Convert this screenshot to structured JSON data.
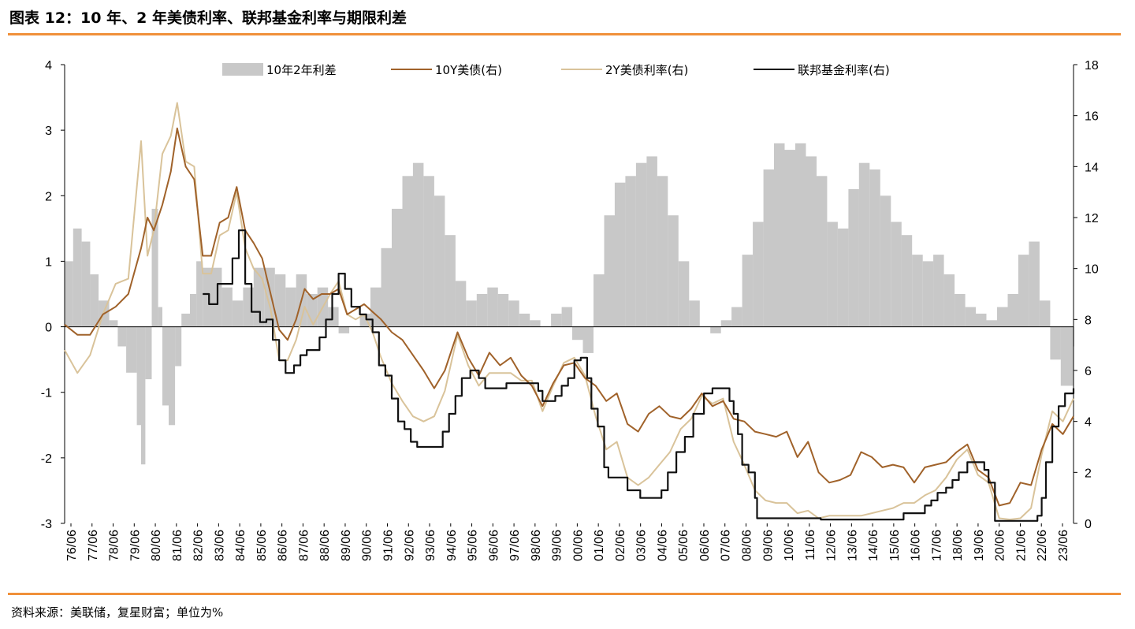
{
  "title": "图表 12：10 年、2 年美债利率、联邦基金利率与期限利差",
  "source": "资料来源：美联储，复星财富；单位为%",
  "colors": {
    "accent_rule": "#f0903a",
    "spread": "#c8c8c8",
    "y10": "#a0622a",
    "y2": "#d9c39a",
    "ffr": "#111111"
  },
  "chart_data": {
    "type": "line",
    "title": "",
    "x_tick_labels": [
      "76/06",
      "77/06",
      "78/06",
      "79/06",
      "80/06",
      "81/06",
      "82/06",
      "83/06",
      "84/06",
      "85/06",
      "86/06",
      "87/06",
      "88/06",
      "89/06",
      "90/06",
      "91/06",
      "92/06",
      "93/06",
      "94/06",
      "95/06",
      "96/06",
      "97/06",
      "98/06",
      "99/06",
      "00/06",
      "01/06",
      "02/06",
      "03/06",
      "04/06",
      "05/06",
      "06/06",
      "07/06",
      "08/06",
      "09/06",
      "10/06",
      "11/06",
      "12/06",
      "13/06",
      "14/06",
      "15/06",
      "16/06",
      "17/06",
      "18/06",
      "19/06",
      "20/06",
      "21/06",
      "22/06",
      "23/06"
    ],
    "x_range": [
      1976.4,
      2023.9
    ],
    "left_axis": {
      "ylim": [
        -3,
        4
      ],
      "ticks": [
        "4",
        "3",
        "2",
        "1",
        "0",
        "-1",
        "-2",
        "-3"
      ]
    },
    "right_axis": {
      "ylim": [
        0,
        18
      ],
      "ticks": [
        "18",
        "16",
        "14",
        "12",
        "10",
        "8",
        "6",
        "4",
        "2",
        "0"
      ]
    },
    "legend": [
      {
        "key": "spread",
        "label": "10年2年利差"
      },
      {
        "key": "y10",
        "label": "10Y美债(右)"
      },
      {
        "key": "y2",
        "label": "2Y美债利率(右)"
      },
      {
        "key": "ffr",
        "label": "联邦基金利率(右)"
      }
    ],
    "series": [
      {
        "name": "10年2年利差",
        "key": "spread",
        "axis": "left",
        "style": "area",
        "x": [
          1976.4,
          1976.8,
          1977.2,
          1977.6,
          1978.0,
          1978.5,
          1978.9,
          1979.3,
          1979.8,
          1980.0,
          1980.2,
          1980.5,
          1980.8,
          1981.0,
          1981.3,
          1981.6,
          1981.9,
          1982.3,
          1982.6,
          1982.9,
          1983.3,
          1983.8,
          1984.3,
          1984.8,
          1985.3,
          1985.8,
          1986.3,
          1986.8,
          1987.3,
          1987.8,
          1988.3,
          1988.8,
          1989.3,
          1989.8,
          1990.3,
          1990.8,
          1991.3,
          1991.8,
          1992.3,
          1992.8,
          1993.3,
          1993.8,
          1994.3,
          1994.8,
          1995.3,
          1995.8,
          1996.3,
          1996.8,
          1997.3,
          1997.8,
          1998.3,
          1998.8,
          1999.3,
          1999.8,
          2000.3,
          2000.8,
          2001.3,
          2001.8,
          2002.3,
          2002.8,
          2003.3,
          2003.8,
          2004.3,
          2004.8,
          2005.3,
          2005.8,
          2006.3,
          2006.8,
          2007.3,
          2007.8,
          2008.3,
          2008.8,
          2009.3,
          2009.8,
          2010.3,
          2010.8,
          2011.3,
          2011.8,
          2012.3,
          2012.8,
          2013.3,
          2013.8,
          2014.3,
          2014.8,
          2015.3,
          2015.8,
          2016.3,
          2016.8,
          2017.3,
          2017.8,
          2018.3,
          2018.8,
          2019.3,
          2019.8,
          2020.3,
          2020.8,
          2021.3,
          2021.8,
          2022.3,
          2022.8,
          2023.3,
          2023.9
        ],
        "values": [
          1.0,
          1.5,
          1.3,
          0.8,
          0.4,
          0.1,
          -0.3,
          -0.7,
          -1.5,
          -2.1,
          -0.8,
          1.8,
          0.3,
          -1.2,
          -1.5,
          -0.6,
          0.2,
          0.5,
          1.0,
          0.9,
          0.9,
          0.6,
          0.4,
          0.6,
          0.9,
          0.9,
          0.8,
          0.6,
          0.8,
          0.5,
          0.6,
          0.3,
          -0.1,
          0.0,
          0.2,
          0.6,
          1.2,
          1.8,
          2.3,
          2.5,
          2.3,
          2.0,
          1.4,
          0.7,
          0.4,
          0.5,
          0.6,
          0.5,
          0.4,
          0.2,
          0.1,
          0.0,
          0.2,
          0.3,
          -0.2,
          -0.4,
          0.8,
          1.7,
          2.2,
          2.3,
          2.5,
          2.6,
          2.3,
          1.7,
          1.0,
          0.4,
          0.0,
          -0.1,
          0.1,
          0.3,
          1.1,
          1.6,
          2.4,
          2.8,
          2.7,
          2.8,
          2.6,
          2.3,
          1.6,
          1.5,
          2.1,
          2.5,
          2.4,
          2.0,
          1.6,
          1.4,
          1.1,
          1.0,
          1.1,
          0.8,
          0.5,
          0.3,
          0.2,
          0.1,
          0.3,
          0.5,
          1.1,
          1.3,
          0.4,
          -0.5,
          -0.9,
          -0.3
        ]
      },
      {
        "name": "10Y美债(右)",
        "key": "y10",
        "axis": "right",
        "style": "line",
        "x": [
          1976.4,
          1977.0,
          1977.6,
          1978.2,
          1978.8,
          1979.4,
          1980.0,
          1980.3,
          1980.6,
          1981.0,
          1981.4,
          1981.7,
          1982.1,
          1982.5,
          1982.9,
          1983.3,
          1983.7,
          1984.1,
          1984.5,
          1984.9,
          1985.3,
          1985.7,
          1986.1,
          1986.5,
          1986.9,
          1987.3,
          1987.7,
          1988.1,
          1988.5,
          1988.9,
          1989.3,
          1989.7,
          1990.1,
          1990.5,
          1990.9,
          1991.3,
          1991.8,
          1992.3,
          1992.8,
          1993.3,
          1993.8,
          1994.3,
          1994.9,
          1995.4,
          1995.9,
          1996.4,
          1996.9,
          1997.4,
          1997.9,
          1998.4,
          1998.9,
          1999.4,
          1999.9,
          2000.4,
          2000.9,
          2001.4,
          2001.9,
          2002.4,
          2002.9,
          2003.4,
          2003.9,
          2004.4,
          2004.9,
          2005.4,
          2005.9,
          2006.4,
          2006.9,
          2007.4,
          2007.9,
          2008.4,
          2008.9,
          2009.4,
          2009.9,
          2010.4,
          2010.9,
          2011.4,
          2011.9,
          2012.4,
          2012.9,
          2013.4,
          2013.9,
          2014.4,
          2014.9,
          2015.4,
          2015.9,
          2016.4,
          2016.9,
          2017.4,
          2017.9,
          2018.4,
          2018.9,
          2019.4,
          2019.9,
          2020.4,
          2020.9,
          2021.4,
          2021.9,
          2022.4,
          2022.9,
          2023.4,
          2023.9
        ],
        "values": [
          7.8,
          7.4,
          7.4,
          8.2,
          8.5,
          9.0,
          10.8,
          12.0,
          11.5,
          12.5,
          13.8,
          15.5,
          14.0,
          13.5,
          10.5,
          10.5,
          11.8,
          12.0,
          13.2,
          11.5,
          11.0,
          10.4,
          9.0,
          7.6,
          7.2,
          8.0,
          9.2,
          8.8,
          9.0,
          9.0,
          9.2,
          8.2,
          8.4,
          8.6,
          8.3,
          8.0,
          7.5,
          7.2,
          6.6,
          6.0,
          5.3,
          6.0,
          7.5,
          6.5,
          5.8,
          6.7,
          6.2,
          6.5,
          5.8,
          5.4,
          4.6,
          5.5,
          6.2,
          6.3,
          5.7,
          5.4,
          4.8,
          5.1,
          3.9,
          3.6,
          4.3,
          4.6,
          4.2,
          4.1,
          4.5,
          5.1,
          4.6,
          4.8,
          4.1,
          4.0,
          3.6,
          3.5,
          3.4,
          3.6,
          2.6,
          3.2,
          2.0,
          1.6,
          1.7,
          1.9,
          2.8,
          2.6,
          2.2,
          2.3,
          2.2,
          1.6,
          2.2,
          2.3,
          2.4,
          2.8,
          3.1,
          2.1,
          1.8,
          0.7,
          0.8,
          1.6,
          1.5,
          2.9,
          3.9,
          3.5,
          4.2
        ]
      },
      {
        "name": "2Y美债利率(右)",
        "key": "y2",
        "axis": "right",
        "style": "line",
        "x": [
          1976.4,
          1977.0,
          1977.6,
          1978.2,
          1978.8,
          1979.4,
          1980.0,
          1980.3,
          1980.6,
          1981.0,
          1981.4,
          1981.7,
          1982.1,
          1982.5,
          1982.9,
          1983.3,
          1983.7,
          1984.1,
          1984.5,
          1984.9,
          1985.3,
          1985.7,
          1986.1,
          1986.5,
          1986.9,
          1987.3,
          1987.7,
          1988.1,
          1988.5,
          1988.9,
          1989.3,
          1989.7,
          1990.1,
          1990.5,
          1990.9,
          1991.3,
          1991.8,
          1992.3,
          1992.8,
          1993.3,
          1993.8,
          1994.3,
          1994.9,
          1995.4,
          1995.9,
          1996.4,
          1996.9,
          1997.4,
          1997.9,
          1998.4,
          1998.9,
          1999.4,
          1999.9,
          2000.4,
          2000.9,
          2001.4,
          2001.9,
          2002.4,
          2002.9,
          2003.4,
          2003.9,
          2004.4,
          2004.9,
          2005.4,
          2005.9,
          2006.4,
          2006.9,
          2007.4,
          2007.9,
          2008.4,
          2008.9,
          2009.4,
          2009.9,
          2010.4,
          2010.9,
          2011.4,
          2011.9,
          2012.4,
          2012.9,
          2013.4,
          2013.9,
          2014.4,
          2014.9,
          2015.4,
          2015.9,
          2016.4,
          2016.9,
          2017.4,
          2017.9,
          2018.4,
          2018.9,
          2019.4,
          2019.9,
          2020.4,
          2020.9,
          2021.4,
          2021.9,
          2022.4,
          2022.9,
          2023.4,
          2023.9
        ],
        "values": [
          6.8,
          5.9,
          6.6,
          8.2,
          9.4,
          9.6,
          15.0,
          10.5,
          11.5,
          14.5,
          15.2,
          16.5,
          14.2,
          14.0,
          9.8,
          9.8,
          11.3,
          11.5,
          13.0,
          10.8,
          10.0,
          9.6,
          8.4,
          6.4,
          6.4,
          7.2,
          8.5,
          7.8,
          8.4,
          9.0,
          9.5,
          8.2,
          8.0,
          8.2,
          7.5,
          6.5,
          5.5,
          4.8,
          4.2,
          4.0,
          4.2,
          5.2,
          7.4,
          6.2,
          5.4,
          5.9,
          5.9,
          5.9,
          5.6,
          5.6,
          4.4,
          5.4,
          6.3,
          6.5,
          5.8,
          4.2,
          2.9,
          3.2,
          1.8,
          1.5,
          1.8,
          2.3,
          2.8,
          3.7,
          4.1,
          5.0,
          4.7,
          4.9,
          3.2,
          2.3,
          1.3,
          0.9,
          0.8,
          0.8,
          0.4,
          0.5,
          0.2,
          0.3,
          0.3,
          0.3,
          0.3,
          0.4,
          0.5,
          0.6,
          0.8,
          0.8,
          1.1,
          1.3,
          1.8,
          2.5,
          2.9,
          1.9,
          1.6,
          0.2,
          0.15,
          0.2,
          0.6,
          2.7,
          4.4,
          4.0,
          4.9
        ]
      },
      {
        "name": "联邦基金利率(右)",
        "key": "ffr",
        "axis": "right",
        "style": "step",
        "x": [
          1982.9,
          1983.2,
          1983.6,
          1983.9,
          1984.3,
          1984.6,
          1984.9,
          1985.2,
          1985.6,
          1985.9,
          1986.2,
          1986.5,
          1986.8,
          1987.2,
          1987.5,
          1987.8,
          1988.1,
          1988.4,
          1988.7,
          1989.0,
          1989.3,
          1989.6,
          1989.9,
          1990.3,
          1990.6,
          1990.9,
          1991.2,
          1991.5,
          1991.8,
          1992.1,
          1992.4,
          1992.7,
          1993.0,
          1993.5,
          1994.0,
          1994.2,
          1994.5,
          1994.8,
          1995.1,
          1995.5,
          1995.9,
          1996.2,
          1996.6,
          1997.2,
          1998.0,
          1998.7,
          1998.9,
          1999.1,
          1999.5,
          1999.8,
          2000.1,
          2000.4,
          2000.7,
          2001.0,
          2001.2,
          2001.5,
          2001.8,
          2002.0,
          2002.4,
          2002.9,
          2003.5,
          2004.0,
          2004.5,
          2004.8,
          2005.2,
          2005.6,
          2006.0,
          2006.5,
          2006.9,
          2007.4,
          2007.7,
          2007.9,
          2008.1,
          2008.3,
          2008.6,
          2008.9,
          2009.0,
          2012.0,
          2015.9,
          2016.5,
          2016.9,
          2017.2,
          2017.5,
          2017.9,
          2018.2,
          2018.5,
          2018.9,
          2019.5,
          2019.7,
          2019.9,
          2020.2,
          2021.5,
          2022.2,
          2022.4,
          2022.6,
          2022.9,
          2023.2,
          2023.5,
          2023.9
        ],
        "values": [
          9.0,
          8.6,
          9.4,
          9.4,
          10.4,
          11.5,
          9.4,
          8.3,
          7.9,
          8.0,
          7.2,
          6.4,
          5.9,
          6.2,
          6.6,
          6.8,
          6.8,
          7.3,
          8.0,
          9.0,
          9.8,
          9.2,
          8.5,
          8.2,
          8.0,
          7.5,
          6.2,
          5.8,
          4.9,
          4.0,
          3.7,
          3.2,
          3.0,
          3.0,
          3.0,
          3.6,
          4.3,
          5.0,
          5.7,
          6.0,
          5.7,
          5.3,
          5.3,
          5.5,
          5.5,
          5.2,
          4.8,
          4.8,
          5.0,
          5.4,
          5.7,
          6.4,
          6.5,
          5.7,
          4.5,
          3.8,
          2.2,
          1.8,
          1.8,
          1.3,
          1.0,
          1.0,
          1.3,
          2.0,
          2.8,
          3.4,
          4.3,
          5.1,
          5.3,
          5.3,
          4.8,
          4.3,
          3.5,
          2.3,
          2.0,
          1.0,
          0.2,
          0.15,
          0.4,
          0.4,
          0.7,
          0.9,
          1.2,
          1.4,
          1.7,
          2.0,
          2.4,
          2.4,
          2.1,
          1.6,
          0.1,
          0.1,
          0.3,
          1.0,
          2.4,
          3.8,
          4.6,
          5.1,
          5.3
        ]
      }
    ]
  }
}
